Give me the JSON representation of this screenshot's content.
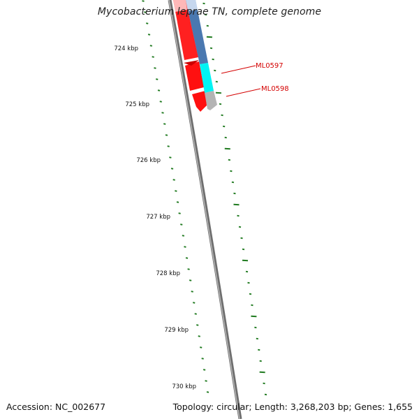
{
  "title": "Mycobacterium leprae TN, complete genome",
  "footer": {
    "accession": "Accession: NC_002677",
    "summary": "Topology: circular; Length: 3,268,203 bp; Genes: 1,655"
  },
  "colors": {
    "backbone": "#7a7a7a",
    "ruler": "#1f7a1f",
    "forward_gene": "#ff0000",
    "reverse_gene": "#4f7fb5",
    "highlight_gene": "#00f0f0",
    "grey_gene": "#b0b0b0",
    "gene_label": "#d40000"
  },
  "ruler_labels": [
    "724 kbp",
    "725 kbp",
    "726 kbp",
    "727 kbp",
    "728 kbp",
    "729 kbp",
    "730 kbp"
  ],
  "gene_labels": [
    "ML0597",
    "ML0598"
  ]
}
